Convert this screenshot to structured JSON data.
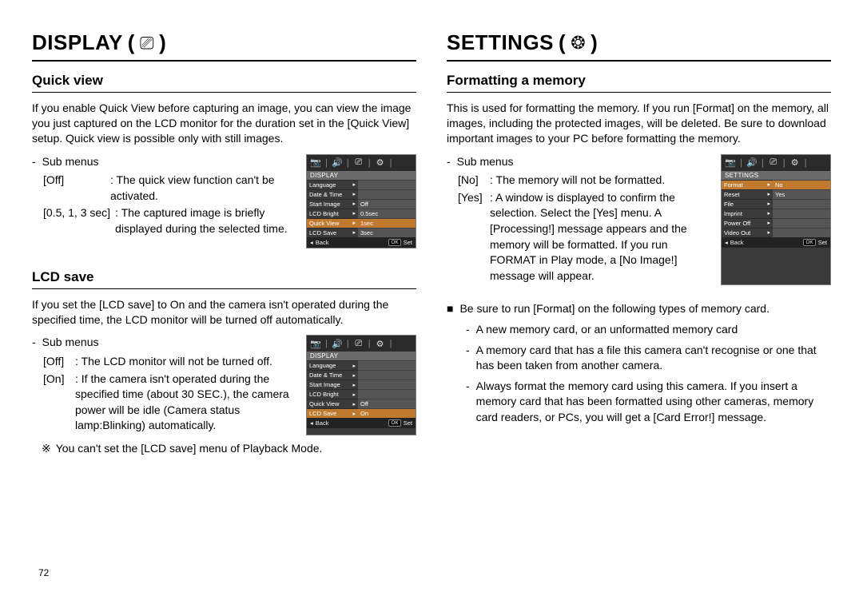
{
  "page_number": "72",
  "left": {
    "title": "DISPLAY",
    "title_icon": "⎚",
    "sec1": {
      "heading": "Quick view",
      "para": "If you enable Quick View before capturing an image, you can view the image you just captured on the LCD monitor for the duration set in the [Quick View] setup. Quick view is possible only with still images.",
      "sub_label": "Sub menus",
      "kv1_k": "[Off]",
      "kv1_v": ": The quick view function can't be activated.",
      "kv2_k": "[0.5, 1, 3 sec]",
      "kv2_v": ": The captured image is briefly displayed during the selected time.",
      "menu": {
        "section": "DISPLAY",
        "rows": [
          {
            "l": "Language",
            "r": ""
          },
          {
            "l": "Date & Time",
            "r": ""
          },
          {
            "l": "Start Image",
            "r": "Off"
          },
          {
            "l": "LCD Bright",
            "r": "0.5sec"
          },
          {
            "l": "Quick View",
            "r": "1sec",
            "rsel": true,
            "lsel": true
          },
          {
            "l": "LCD Save",
            "r": "3sec"
          }
        ],
        "footer_back": "Back",
        "footer_set": "Set"
      }
    },
    "sec2": {
      "heading": "LCD save",
      "para": "If you set the [LCD save] to On and the camera isn't operated during the specified time, the LCD monitor will be turned off automatically.",
      "sub_label": "Sub menus",
      "kv1_k": "[Off]",
      "kv1_v": ": The LCD monitor will not be turned off.",
      "kv2_k": "[On]",
      "kv2_v": ": If the camera isn't operated during the specified time (about 30 SEC.), the camera power will be idle (Camera status lamp:Blinking) automatically.",
      "note_sym": "※",
      "note": "You can't set the [LCD save] menu of Playback Mode.",
      "menu": {
        "section": "DISPLAY",
        "rows": [
          {
            "l": "Language",
            "r": ""
          },
          {
            "l": "Date & Time",
            "r": ""
          },
          {
            "l": "Start Image",
            "r": ""
          },
          {
            "l": "LCD Bright",
            "r": ""
          },
          {
            "l": "Quick View",
            "r": "Off"
          },
          {
            "l": "LCD Save",
            "r": "On",
            "rsel": true,
            "lsel": true
          }
        ],
        "footer_back": "Back",
        "footer_set": "Set"
      }
    }
  },
  "right": {
    "title": "SETTINGS",
    "title_icon": "❂",
    "sec1": {
      "heading": "Formatting a memory",
      "para": "This is used for formatting the memory. If you run [Format] on the memory, all images, including the protected images, will be deleted. Be sure to download important images to your PC before formatting the memory.",
      "sub_label": "Sub menus",
      "kv1_k": "[No]",
      "kv1_v": ": The memory will not be formatted.",
      "kv2_k": "[Yes]",
      "kv2_v": ": A window is displayed to confirm the selection. Select the [Yes] menu. A [Processing!] message appears and the memory will be formatted. If you run FORMAT in Play mode, a [No Image!] message will appear.",
      "menu": {
        "section": "SETTINGS",
        "rows": [
          {
            "l": "Format",
            "r": "No",
            "rsel": true,
            "lsel": true
          },
          {
            "l": "Reset",
            "r": "Yes"
          },
          {
            "l": "File",
            "r": ""
          },
          {
            "l": "Imprint",
            "r": ""
          },
          {
            "l": "Power Off",
            "r": ""
          },
          {
            "l": "Video Out",
            "r": ""
          }
        ],
        "footer_back": "Back",
        "footer_set": "Set"
      }
    },
    "bullets": {
      "lead_sym": "■",
      "lead": "Be sure to run [Format] on the following types of memory card.",
      "items": [
        "A new memory card, or an unformatted memory card",
        "A memory card that has a file this camera can't recognise or one that has been taken from another camera.",
        "Always format the memory card using this camera. If you insert a memory card that has been formatted using other cameras, memory card readers, or PCs, you will get a [Card Error!] message."
      ]
    }
  },
  "colors": {
    "menu_highlight": "#c07a30",
    "menu_bg": "#3a3a3a",
    "menu_right_bg": "#555555",
    "text": "#000000"
  }
}
